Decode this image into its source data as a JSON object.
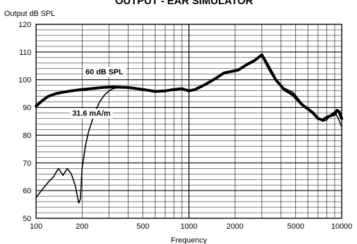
{
  "chart_data": {
    "type": "line",
    "title": "OUTPUT - EAR SIMULATOR",
    "ylabel": "Output dB SPL",
    "xlabel": "Frequency",
    "x_scale": "log",
    "xlim": [
      100,
      10000
    ],
    "ylim": [
      50,
      120
    ],
    "x_ticks": [
      100,
      200,
      500,
      1000,
      2000,
      5000,
      10000
    ],
    "x_tick_labels": [
      "100",
      "200",
      "500",
      "1000",
      "2000",
      "5000",
      "10000"
    ],
    "y_ticks": [
      50,
      60,
      70,
      80,
      90,
      100,
      110,
      120
    ],
    "y_tick_labels": [
      "50",
      "60",
      "70",
      "80",
      "90",
      "100",
      "110",
      "120"
    ],
    "grid": true,
    "series": [
      {
        "name": "60 dB SPL",
        "stroke": "thick",
        "x": [
          100,
          110,
          120,
          135,
          150,
          170,
          200,
          230,
          270,
          320,
          400,
          500,
          600,
          700,
          800,
          900,
          1000,
          1100,
          1300,
          1500,
          1700,
          1900,
          2100,
          2400,
          2700,
          3000,
          3300,
          3700,
          4200,
          4800,
          5500,
          6000,
          6500,
          7000,
          7500,
          8000,
          8500,
          9000,
          9300,
          9600,
          10000
        ],
        "y": [
          90.5,
          92.5,
          94,
          95,
          95.5,
          96,
          96.5,
          96.8,
          97.2,
          97.4,
          97.2,
          96.5,
          95.8,
          96,
          96.5,
          96.8,
          96,
          96.5,
          98.5,
          100.5,
          102.5,
          103,
          103.5,
          105.5,
          107,
          109,
          105,
          100,
          96.5,
          94.5,
          91,
          89.5,
          88,
          86,
          85.5,
          86.5,
          87,
          87.5,
          89,
          88.5,
          86
        ]
      },
      {
        "name": "31.6 mA/m",
        "stroke": "thin",
        "x": [
          100,
          110,
          120,
          130,
          140,
          150,
          160,
          170,
          180,
          190,
          195,
          200,
          210,
          220,
          240,
          260,
          280,
          300,
          320,
          350,
          400,
          500,
          600,
          700,
          800,
          900,
          1000,
          1100,
          1300,
          1500,
          1700,
          1900,
          2100,
          2400,
          2700,
          3000,
          3300,
          3700,
          4200,
          4800,
          5500,
          6000,
          6500,
          7000,
          7500,
          8000,
          8500,
          9000,
          9500,
          10000
        ],
        "y": [
          57.5,
          60.5,
          63,
          65,
          68,
          65.5,
          68,
          66,
          62,
          55.5,
          57,
          68,
          76,
          81,
          87.5,
          92,
          94.5,
          96,
          96.8,
          97.2,
          97.2,
          96.5,
          95.8,
          96,
          96.5,
          96.8,
          96,
          96.5,
          98.5,
          100.5,
          102.5,
          103,
          103.5,
          105.5,
          107,
          108.5,
          104,
          99.5,
          97,
          95.5,
          91.5,
          89.5,
          87.5,
          86,
          85,
          85.5,
          87.5,
          88.5,
          86,
          83
        ]
      }
    ],
    "annotations": [
      {
        "text": "60 dB SPL",
        "x": 280,
        "y": 103
      },
      {
        "text": "31.6 mA/m",
        "x": 230,
        "y": 88
      }
    ]
  }
}
